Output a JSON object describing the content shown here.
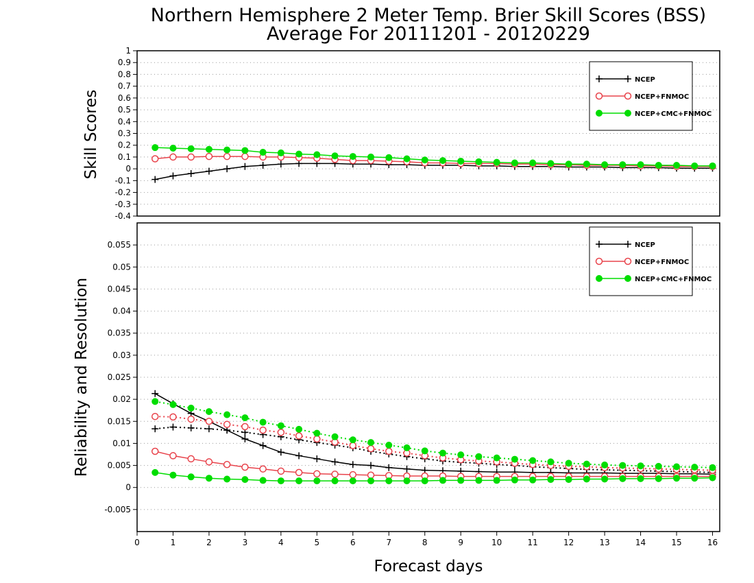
{
  "chart_data": [
    {
      "type": "line",
      "title": "Northern Hemisphere 2 Meter Temp. Brier Skill Scores (BSS)",
      "subtitle": "Average For 20111201 - 20120229",
      "xlabel": "",
      "ylabel": "Skill Scores",
      "ylim": [
        -0.4,
        1.0
      ],
      "yticks": [
        "-0.4",
        "-0.3",
        "-0.2",
        "-0.1",
        "0",
        "0.1",
        "0.2",
        "0.3",
        "0.4",
        "0.5",
        "0.6",
        "0.7",
        "0.8",
        "0.9",
        "1"
      ],
      "xlim": [
        0,
        16.2
      ],
      "grid": true,
      "legend_position": "top-right",
      "x": [
        0.5,
        1,
        1.5,
        2,
        2.5,
        3,
        3.5,
        4,
        4.5,
        5,
        5.5,
        6,
        6.5,
        7,
        7.5,
        8,
        8.5,
        9,
        9.5,
        10,
        10.5,
        11,
        11.5,
        12,
        12.5,
        13,
        13.5,
        14,
        14.5,
        15,
        15.5,
        16
      ],
      "series": [
        {
          "name": "NCEP",
          "color": "#000000",
          "marker": "plus",
          "values": [
            -0.09,
            -0.06,
            -0.04,
            -0.02,
            0.0,
            0.02,
            0.03,
            0.04,
            0.045,
            0.045,
            0.045,
            0.04,
            0.04,
            0.035,
            0.035,
            0.03,
            0.03,
            0.03,
            0.025,
            0.025,
            0.02,
            0.02,
            0.02,
            0.015,
            0.015,
            0.015,
            0.01,
            0.01,
            0.01,
            0.005,
            0.005,
            0.005
          ]
        },
        {
          "name": "NCEP+FNMOC",
          "color": "#e8434b",
          "marker": "open-circle",
          "values": [
            0.085,
            0.1,
            0.1,
            0.105,
            0.105,
            0.105,
            0.1,
            0.1,
            0.095,
            0.09,
            0.08,
            0.07,
            0.07,
            0.065,
            0.06,
            0.05,
            0.05,
            0.045,
            0.045,
            0.045,
            0.04,
            0.04,
            0.035,
            0.035,
            0.03,
            0.03,
            0.03,
            0.025,
            0.025,
            0.02,
            0.02,
            0.02
          ]
        },
        {
          "name": "NCEP+CMC+FNMOC",
          "color": "#00dd00",
          "marker": "filled-circle",
          "values": [
            0.18,
            0.175,
            0.17,
            0.165,
            0.16,
            0.155,
            0.14,
            0.135,
            0.125,
            0.12,
            0.11,
            0.105,
            0.1,
            0.095,
            0.085,
            0.075,
            0.07,
            0.065,
            0.06,
            0.055,
            0.05,
            0.05,
            0.045,
            0.04,
            0.04,
            0.035,
            0.035,
            0.035,
            0.03,
            0.03,
            0.025,
            0.025
          ]
        }
      ]
    },
    {
      "type": "line",
      "xlabel": "Forecast days",
      "ylabel": "Reliability and Resolution",
      "ylim": [
        -0.01,
        0.06
      ],
      "yticks": [
        "-0.005",
        "0",
        "0.005",
        "0.01",
        "0.015",
        "0.02",
        "0.025",
        "0.03",
        "0.035",
        "0.04",
        "0.045",
        "0.05",
        "0.055"
      ],
      "xlim": [
        0,
        16.2
      ],
      "xticks": [
        "0",
        "1",
        "2",
        "3",
        "4",
        "5",
        "6",
        "7",
        "8",
        "9",
        "10",
        "11",
        "12",
        "13",
        "14",
        "15",
        "16"
      ],
      "grid": true,
      "legend_position": "top-right",
      "x": [
        0.5,
        1,
        1.5,
        2,
        2.5,
        3,
        3.5,
        4,
        4.5,
        5,
        5.5,
        6,
        6.5,
        7,
        7.5,
        8,
        8.5,
        9,
        9.5,
        10,
        10.5,
        11,
        11.5,
        12,
        12.5,
        13,
        13.5,
        14,
        14.5,
        15,
        15.5,
        16
      ],
      "series": [
        {
          "name": "NCEP",
          "color": "#000000",
          "marker": "plus",
          "style": "solid",
          "role": "reliability",
          "values": [
            0.0213,
            0.019,
            0.0168,
            0.015,
            0.013,
            0.011,
            0.0095,
            0.008,
            0.0072,
            0.0065,
            0.0058,
            0.0052,
            0.005,
            0.0045,
            0.0042,
            0.0039,
            0.0038,
            0.0037,
            0.0036,
            0.0035,
            0.0035,
            0.0034,
            0.0034,
            0.0033,
            0.0033,
            0.0033,
            0.0032,
            0.0032,
            0.0032,
            0.0031,
            0.0031,
            0.003
          ]
        },
        {
          "name": "NCEP",
          "color": "#000000",
          "marker": "plus",
          "style": "dotted",
          "role": "resolution",
          "values": [
            0.0133,
            0.0137,
            0.0135,
            0.0133,
            0.013,
            0.0125,
            0.012,
            0.0115,
            0.0108,
            0.0102,
            0.0096,
            0.009,
            0.0082,
            0.0076,
            0.007,
            0.0065,
            0.006,
            0.0057,
            0.0055,
            0.0052,
            0.005,
            0.0047,
            0.0045,
            0.0043,
            0.0041,
            0.004,
            0.0039,
            0.0038,
            0.0037,
            0.0036,
            0.0035,
            0.0034
          ]
        },
        {
          "name": "NCEP+FNMOC",
          "color": "#e8434b",
          "marker": "open-circle",
          "style": "solid",
          "role": "reliability",
          "values": [
            0.0082,
            0.0072,
            0.0065,
            0.0058,
            0.0052,
            0.0046,
            0.0042,
            0.0037,
            0.0034,
            0.0031,
            0.003,
            0.0029,
            0.0028,
            0.0027,
            0.0026,
            0.0026,
            0.0026,
            0.0025,
            0.0025,
            0.0025,
            0.0025,
            0.0025,
            0.0025,
            0.0025,
            0.0025,
            0.0025,
            0.0025,
            0.0025,
            0.0025,
            0.0025,
            0.0025,
            0.0025
          ]
        },
        {
          "name": "NCEP+FNMOC",
          "color": "#e8434b",
          "marker": "open-circle",
          "style": "dotted",
          "role": "resolution",
          "values": [
            0.0161,
            0.016,
            0.0155,
            0.015,
            0.0143,
            0.0138,
            0.013,
            0.0125,
            0.0117,
            0.011,
            0.0103,
            0.0095,
            0.0088,
            0.0082,
            0.0078,
            0.0072,
            0.0067,
            0.0063,
            0.006,
            0.0058,
            0.0055,
            0.0052,
            0.005,
            0.0048,
            0.0047,
            0.0045,
            0.0044,
            0.0043,
            0.0042,
            0.0041,
            0.004,
            0.0039
          ]
        },
        {
          "name": "NCEP+CMC+FNMOC",
          "color": "#00dd00",
          "marker": "filled-circle",
          "style": "solid",
          "role": "reliability",
          "values": [
            0.0034,
            0.0028,
            0.0024,
            0.0021,
            0.0019,
            0.0018,
            0.0016,
            0.0015,
            0.0015,
            0.0015,
            0.0015,
            0.0015,
            0.0015,
            0.0015,
            0.0015,
            0.0015,
            0.0016,
            0.0016,
            0.0016,
            0.0016,
            0.0017,
            0.0017,
            0.0018,
            0.0018,
            0.0019,
            0.0019,
            0.002,
            0.002,
            0.002,
            0.0021,
            0.0021,
            0.0022
          ]
        },
        {
          "name": "NCEP+CMC+FNMOC",
          "color": "#00dd00",
          "marker": "filled-circle",
          "style": "dotted",
          "role": "resolution",
          "values": [
            0.0195,
            0.0188,
            0.018,
            0.0172,
            0.0165,
            0.0158,
            0.0148,
            0.014,
            0.0132,
            0.0123,
            0.0115,
            0.0108,
            0.0102,
            0.0096,
            0.009,
            0.0083,
            0.0078,
            0.0074,
            0.007,
            0.0067,
            0.0064,
            0.0061,
            0.0058,
            0.0055,
            0.0053,
            0.0051,
            0.005,
            0.0049,
            0.0048,
            0.0047,
            0.0046,
            0.0045
          ]
        }
      ]
    }
  ]
}
